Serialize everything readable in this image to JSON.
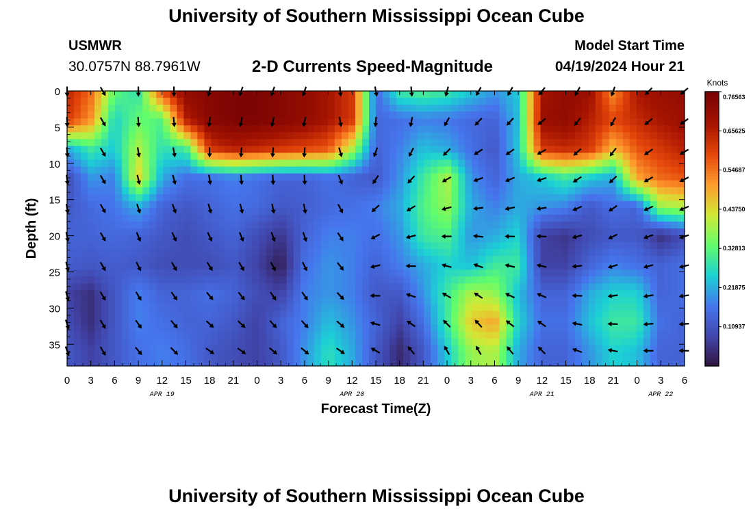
{
  "header": {
    "title": "University of Southern Mississippi Ocean Cube",
    "station": "USMWR",
    "coordinates": "30.0757N  88.7961W",
    "plot_title": "2-D Currents Speed-Magnitude",
    "model_start_label": "Model Start Time",
    "model_start_value": "04/19/2024 Hour 21"
  },
  "footer": {
    "title": "University of Southern Mississippi Ocean Cube"
  },
  "chart_data": {
    "type": "heatmap",
    "title": "2-D Currents Speed-Magnitude",
    "xlabel": "Forecast Time(Z)",
    "ylabel": "Depth (ft)",
    "units": "Knots",
    "x_ticks": [
      "0",
      "3",
      "6",
      "9",
      "12",
      "15",
      "18",
      "21",
      "0",
      "3",
      "6",
      "9",
      "12",
      "15",
      "18",
      "21",
      "0",
      "3",
      "6",
      "9",
      "12",
      "15",
      "18",
      "21",
      "0",
      "3",
      "6"
    ],
    "x_range_hours": [
      0,
      78
    ],
    "date_labels": [
      {
        "label": "APR 19",
        "hour": 12
      },
      {
        "label": "APR 20",
        "hour": 36
      },
      {
        "label": "APR 21",
        "hour": 60
      },
      {
        "label": "APR 22",
        "hour": 75
      }
    ],
    "y_ticks": [
      "0",
      "5",
      "10",
      "15",
      "20",
      "25",
      "30",
      "35"
    ],
    "y_range": [
      0,
      38
    ],
    "colorbar": {
      "min": 0.0,
      "max": 0.76563,
      "labels": [
        "0.76563",
        "0.65625",
        "0.54687",
        "0.43750",
        "0.32813",
        "0.21875",
        "0.10937"
      ],
      "colors": [
        "#30123b",
        "#4145ab",
        "#4675ed",
        "#1bd0d5",
        "#62fc6b",
        "#d2e935",
        "#fe9b2d",
        "#e4460a",
        "#a51301",
        "#7a0403"
      ]
    },
    "x": [
      0,
      3,
      6,
      9,
      12,
      15,
      18,
      21,
      24,
      27,
      30,
      33,
      36,
      39,
      42,
      45,
      48,
      51,
      54,
      57,
      60,
      63,
      66,
      69,
      72,
      75,
      78
    ],
    "depths": [
      0,
      4,
      8,
      12,
      16,
      20,
      24,
      28,
      32,
      36
    ],
    "speed": [
      [
        0.65,
        0.56,
        0.34,
        0.28,
        0.6,
        0.72,
        0.74,
        0.76,
        0.76,
        0.74,
        0.72,
        0.68,
        0.62,
        0.15,
        0.3,
        0.32,
        0.3,
        0.25,
        0.2,
        0.25,
        0.68,
        0.72,
        0.7,
        0.52,
        0.68,
        0.7,
        0.72
      ],
      [
        0.62,
        0.52,
        0.26,
        0.34,
        0.32,
        0.66,
        0.74,
        0.76,
        0.76,
        0.74,
        0.72,
        0.68,
        0.62,
        0.15,
        0.16,
        0.18,
        0.17,
        0.15,
        0.14,
        0.24,
        0.7,
        0.72,
        0.66,
        0.6,
        0.64,
        0.68,
        0.7
      ],
      [
        0.22,
        0.3,
        0.25,
        0.4,
        0.28,
        0.3,
        0.62,
        0.66,
        0.64,
        0.62,
        0.6,
        0.58,
        0.4,
        0.14,
        0.18,
        0.24,
        0.22,
        0.16,
        0.12,
        0.25,
        0.62,
        0.64,
        0.62,
        0.48,
        0.58,
        0.62,
        0.66
      ],
      [
        0.1,
        0.2,
        0.18,
        0.45,
        0.22,
        0.16,
        0.16,
        0.18,
        0.16,
        0.14,
        0.14,
        0.16,
        0.14,
        0.12,
        0.2,
        0.3,
        0.4,
        0.2,
        0.14,
        0.22,
        0.25,
        0.3,
        0.25,
        0.22,
        0.5,
        0.56,
        0.58
      ],
      [
        0.12,
        0.15,
        0.17,
        0.22,
        0.14,
        0.12,
        0.14,
        0.16,
        0.15,
        0.12,
        0.13,
        0.15,
        0.16,
        0.18,
        0.22,
        0.32,
        0.38,
        0.22,
        0.18,
        0.22,
        0.2,
        0.18,
        0.12,
        0.16,
        0.14,
        0.38,
        0.4
      ],
      [
        0.14,
        0.14,
        0.15,
        0.14,
        0.12,
        0.1,
        0.12,
        0.14,
        0.1,
        0.06,
        0.14,
        0.18,
        0.18,
        0.16,
        0.2,
        0.3,
        0.32,
        0.2,
        0.22,
        0.26,
        0.08,
        0.06,
        0.1,
        0.12,
        0.12,
        0.05,
        0.1
      ],
      [
        0.13,
        0.12,
        0.13,
        0.12,
        0.1,
        0.1,
        0.1,
        0.12,
        0.08,
        0.02,
        0.16,
        0.2,
        0.18,
        0.14,
        0.18,
        0.22,
        0.26,
        0.24,
        0.3,
        0.3,
        0.08,
        0.08,
        0.14,
        0.18,
        0.16,
        0.14,
        0.16
      ],
      [
        0.08,
        0.05,
        0.12,
        0.18,
        0.14,
        0.14,
        0.16,
        0.14,
        0.1,
        0.08,
        0.18,
        0.2,
        0.18,
        0.12,
        0.12,
        0.2,
        0.3,
        0.4,
        0.38,
        0.24,
        0.14,
        0.14,
        0.22,
        0.26,
        0.26,
        0.14,
        0.16
      ],
      [
        0.1,
        0.05,
        0.12,
        0.18,
        0.16,
        0.14,
        0.14,
        0.12,
        0.08,
        0.14,
        0.18,
        0.24,
        0.2,
        0.14,
        0.08,
        0.16,
        0.3,
        0.46,
        0.5,
        0.26,
        0.16,
        0.16,
        0.24,
        0.3,
        0.3,
        0.16,
        0.14
      ],
      [
        0.12,
        0.08,
        0.12,
        0.16,
        0.18,
        0.16,
        0.12,
        0.1,
        0.08,
        0.12,
        0.2,
        0.28,
        0.22,
        0.12,
        0.04,
        0.12,
        0.25,
        0.38,
        0.4,
        0.22,
        0.14,
        0.14,
        0.2,
        0.26,
        0.24,
        0.14,
        0.14
      ]
    ],
    "arrow_times": [
      0,
      4.5,
      9,
      13.5,
      18,
      22,
      26,
      30,
      34.5,
      39,
      43.5,
      48,
      52,
      56,
      60,
      64.5,
      69,
      73.5,
      78
    ],
    "arrow_depths": [
      0,
      4.2,
      8.4,
      12.2,
      16.2,
      20.1,
      24.2,
      28.3,
      32.2,
      35.9
    ],
    "arrow_angles_deg": [
      [
        180,
        150,
        180,
        180,
        180,
        190,
        195,
        200,
        200,
        200,
        200,
        190,
        175,
        170,
        175,
        180,
        195,
        210,
        215,
        210,
        220,
        220,
        210,
        200,
        200,
        225,
        230
      ],
      [
        160,
        150,
        150,
        140,
        135,
        125,
        125,
        125,
        125,
        130,
        130,
        125,
        125,
        300,
        320,
        325,
        330,
        330,
        325,
        320,
        315,
        300,
        290,
        280,
        280,
        270,
        270
      ]
    ]
  }
}
